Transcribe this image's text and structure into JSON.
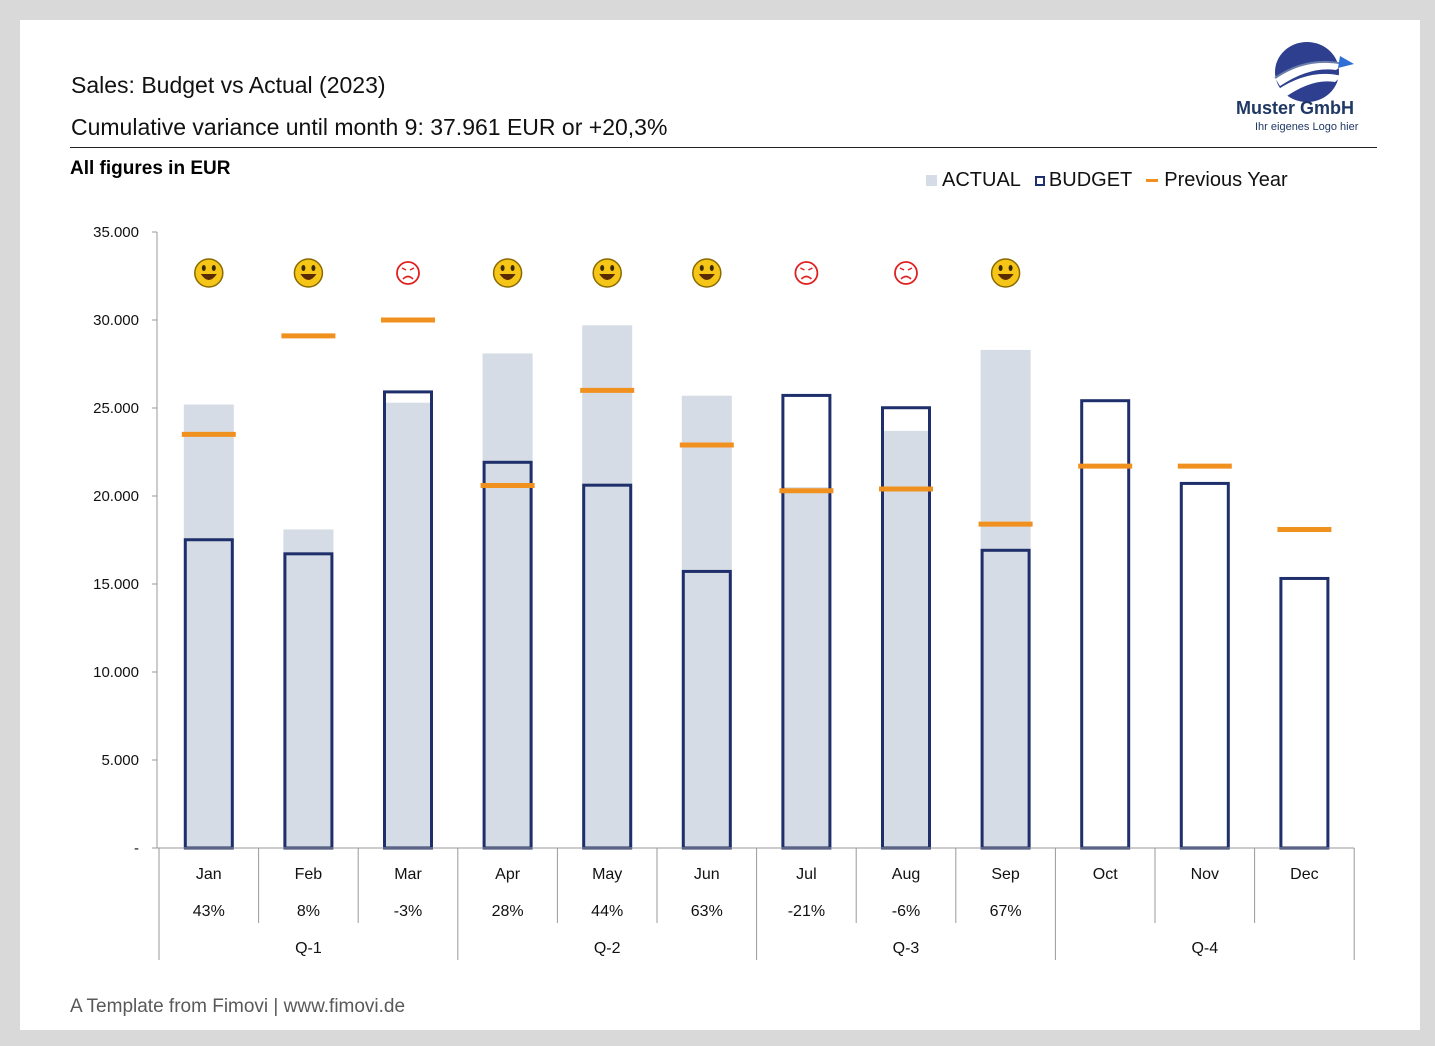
{
  "header": {
    "title": "Sales: Budget vs Actual (2023)",
    "subtitle": "Cumulative variance until month 9: 37.961  EUR or +20,3%",
    "units_note": "All figures in EUR"
  },
  "logo": {
    "company": "Muster GmbH",
    "tagline": "Ihr eigenes Logo hier"
  },
  "legend": {
    "actual": "ACTUAL",
    "budget": "BUDGET",
    "previous": "Previous Year"
  },
  "footer": "A Template from Fimovi  |  www.fimovi.de",
  "colors": {
    "actual": "#d6dce5",
    "budget": "#1f2f6b",
    "previous": "#f0901e",
    "good": "#f5c518",
    "bad": "#e02020"
  },
  "chart_data": {
    "type": "bar",
    "categories": [
      "Jan",
      "Feb",
      "Mar",
      "Apr",
      "May",
      "Jun",
      "Jul",
      "Aug",
      "Sep",
      "Oct",
      "Nov",
      "Dec"
    ],
    "series": [
      {
        "name": "ACTUAL",
        "values": [
          25200,
          18100,
          25300,
          28100,
          29700,
          25700,
          20500,
          23700,
          28300,
          null,
          null,
          null
        ]
      },
      {
        "name": "BUDGET",
        "values": [
          17600,
          16800,
          26000,
          22000,
          20700,
          15800,
          25800,
          25100,
          17000,
          25500,
          20800,
          15400
        ]
      },
      {
        "name": "Previous Year",
        "values": [
          23500,
          29100,
          30000,
          20600,
          26000,
          22900,
          20300,
          20400,
          18400,
          21700,
          21700,
          18100
        ]
      }
    ],
    "variance_labels": [
      "43%",
      "8%",
      "-3%",
      "28%",
      "44%",
      "63%",
      "-21%",
      "-6%",
      "67%",
      "",
      "",
      ""
    ],
    "indicators": [
      "happy",
      "happy",
      "sad",
      "happy",
      "happy",
      "happy",
      "sad",
      "sad",
      "happy",
      "",
      "",
      ""
    ],
    "quarters": [
      "Q-1",
      "Q-2",
      "Q-3",
      "Q-4"
    ],
    "ylim": [
      0,
      35000
    ],
    "yticks": [
      "-",
      "5.000",
      "10.000",
      "15.000",
      "20.000",
      "25.000",
      "30.000",
      "35.000"
    ],
    "ytick_values": [
      0,
      5000,
      10000,
      15000,
      20000,
      25000,
      30000,
      35000
    ],
    "grid": false,
    "legend_position": "top-right"
  }
}
